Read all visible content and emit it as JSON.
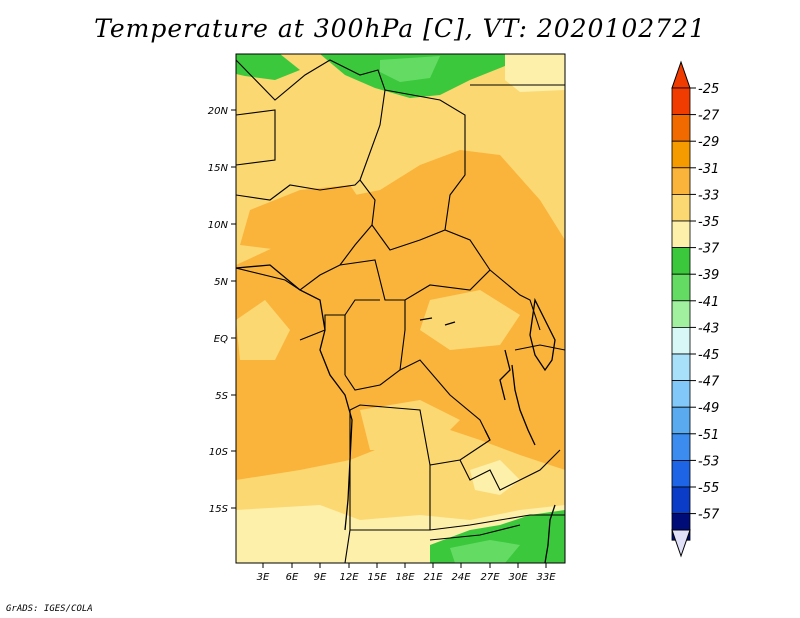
{
  "title": "Temperature at 300hPa [C], VT: 2020102721",
  "credit": "GrADS: IGES/COLA",
  "map": {
    "lat_labels": [
      "20N",
      "15N",
      "10N",
      "5N",
      "EQ",
      "5S",
      "10S",
      "15S"
    ],
    "lon_labels": [
      "3E",
      "6E",
      "9E",
      "12E",
      "15E",
      "18E",
      "21E",
      "24E",
      "27E",
      "30E",
      "33E"
    ]
  },
  "colorbar": {
    "labels": [
      "-25",
      "-27",
      "-29",
      "-31",
      "-33",
      "-35",
      "-37",
      "-39",
      "-41",
      "-43",
      "-45",
      "-47",
      "-49",
      "-51",
      "-53",
      "-55",
      "-57"
    ],
    "colors": [
      "#f03c00",
      "#f06a00",
      "#f59b00",
      "#fab43c",
      "#fcd872",
      "#fdf0aa",
      "#3cc83c",
      "#64dc64",
      "#a0f0a0",
      "#d8f8f8",
      "#a8e0fa",
      "#82c8f8",
      "#5aaaf0",
      "#3c8cf0",
      "#1e64e6",
      "#0a3cc8",
      "#000c78"
    ],
    "top_triangle_color": "#f03c00",
    "bottom_triangle_color": "#e0e0f8"
  }
}
